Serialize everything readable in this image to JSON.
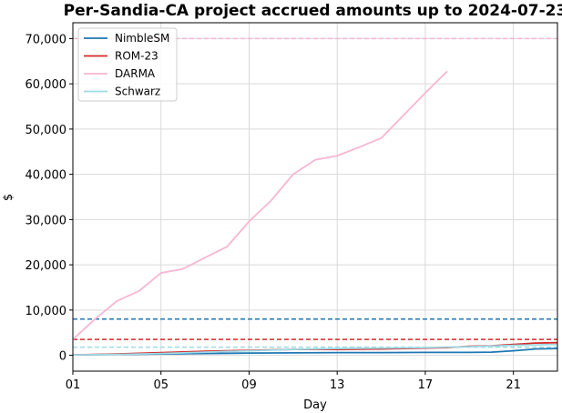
{
  "chart_data": {
    "type": "line",
    "title": "Per-Sandia-CA project accrued amounts up to 2024-07-23",
    "xlabel": "Day",
    "ylabel": "$",
    "xlim": [
      1,
      23
    ],
    "ylim": [
      -3500,
      73500
    ],
    "x_ticks": [
      1,
      5,
      9,
      13,
      17,
      21
    ],
    "x_tick_labels": [
      "01",
      "05",
      "09",
      "13",
      "17",
      "21"
    ],
    "y_ticks": [
      0,
      10000,
      20000,
      30000,
      40000,
      50000,
      60000,
      70000
    ],
    "y_tick_labels": [
      "0",
      "10,000",
      "20,000",
      "30,000",
      "40,000",
      "50,000",
      "60,000",
      "70,000"
    ],
    "grid": true,
    "legend_position": "top-left",
    "series": [
      {
        "name": "NimbleSM",
        "color": "#1f77b4",
        "x": [
          1,
          3,
          5,
          7,
          9,
          11,
          13,
          15,
          17,
          19,
          20,
          21,
          22,
          23
        ],
        "y": [
          100,
          200,
          300,
          400,
          500,
          550,
          600,
          600,
          650,
          650,
          700,
          1000,
          1400,
          1500
        ],
        "limit": 8000
      },
      {
        "name": "ROM-23",
        "color": "#d62728",
        "x": [
          1,
          3,
          5,
          7,
          9,
          11,
          13,
          15,
          17,
          18,
          19,
          20,
          21,
          22,
          23
        ],
        "y": [
          100,
          300,
          600,
          900,
          1100,
          1300,
          1300,
          1400,
          1600,
          1700,
          2000,
          2100,
          2400,
          2700,
          2800
        ],
        "limit": 3500
      },
      {
        "name": "DARMA",
        "color": "#f7b6d2",
        "x": [
          1,
          2,
          3,
          4,
          5,
          6,
          7,
          8,
          9,
          10,
          11,
          12,
          13,
          14,
          15,
          16,
          17,
          18
        ],
        "y": [
          3500,
          8000,
          12000,
          14200,
          18200,
          19100,
          21600,
          24000,
          29600,
          34200,
          40000,
          43200,
          44100,
          46000,
          48000,
          53000,
          58000,
          62800
        ],
        "limit": 70000
      },
      {
        "name": "Schwarz",
        "color": "#9edae5",
        "x": [
          1,
          3,
          5,
          7,
          9,
          11,
          13,
          15,
          17,
          19,
          21,
          22,
          23
        ],
        "y": [
          100,
          200,
          400,
          700,
          1000,
          1300,
          1500,
          1600,
          1700,
          1900,
          2200,
          2300,
          2400
        ],
        "limit": 1800
      }
    ]
  }
}
